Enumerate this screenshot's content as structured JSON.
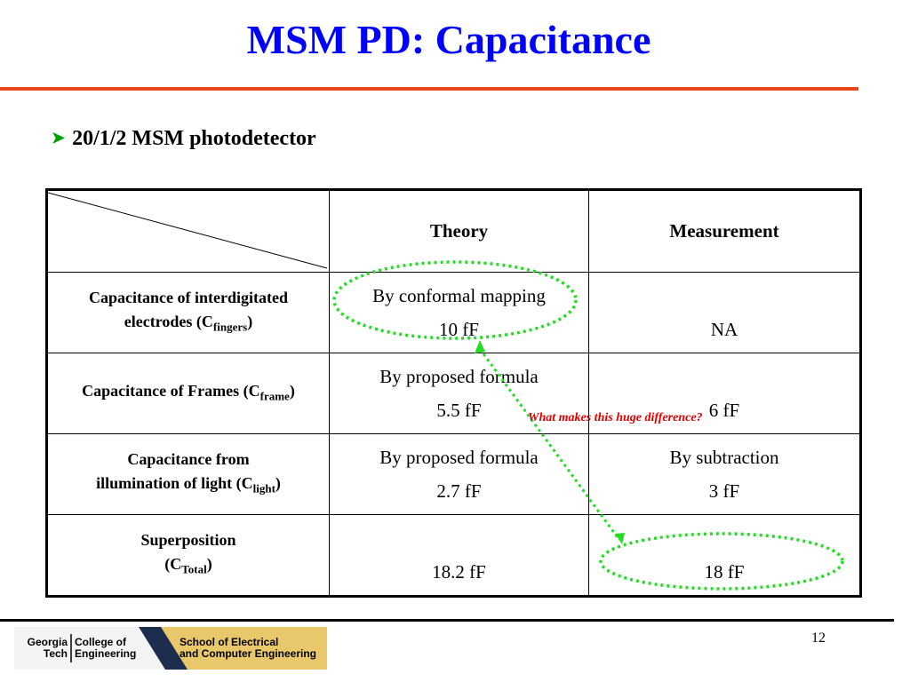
{
  "slide": {
    "title": "MSM PD: Capacitance",
    "bullet": "20/1/2 MSM photodetector",
    "page_number": "12"
  },
  "table": {
    "headers": [
      "Theory",
      "Measurement"
    ],
    "rows": [
      {
        "label": "Capacitance of interdigitated",
        "label_line2": "electrodes (C",
        "label_sub": "fingers",
        "label_close": ")",
        "theory_method": "By conformal mapping",
        "theory_value": "10 fF",
        "measurement_method": "",
        "measurement_value": "NA"
      },
      {
        "label": "Capacitance of Frames (C",
        "label_sub": "frame",
        "label_close": ")",
        "theory_method": "By proposed formula",
        "theory_value": "5.5 fF",
        "measurement_method": "",
        "measurement_value": "6 fF"
      },
      {
        "label": "Capacitance from",
        "label_line2": "illumination of light (C",
        "label_sub": "light",
        "label_close": ")",
        "theory_method": "By proposed formula",
        "theory_value": "2.7 fF",
        "measurement_method": "By subtraction",
        "measurement_value": "3 fF"
      },
      {
        "label": "Superposition",
        "label_line2": "(C",
        "label_sub": "Total",
        "label_close": ")",
        "theory_method": "",
        "theory_value": "18.2 fF",
        "measurement_method": "",
        "measurement_value": "18 fF"
      }
    ]
  },
  "annotation": {
    "note": "What  makes this huge difference?",
    "note_color": "#e00000",
    "highlight_color": "#22dd22"
  },
  "logo": {
    "line1a": "Georgia",
    "line1b": "Tech",
    "line2a": "College of",
    "line2b": "Engineering",
    "line3a": "School of Electrical",
    "line3b": "and Computer Engineering"
  },
  "colors": {
    "title": "#0000ff",
    "title_rule": "#e8461a",
    "bullet_arrow": "#00a000",
    "logo_gold": "#e8c86a",
    "logo_navy": "#1d2d4d"
  }
}
